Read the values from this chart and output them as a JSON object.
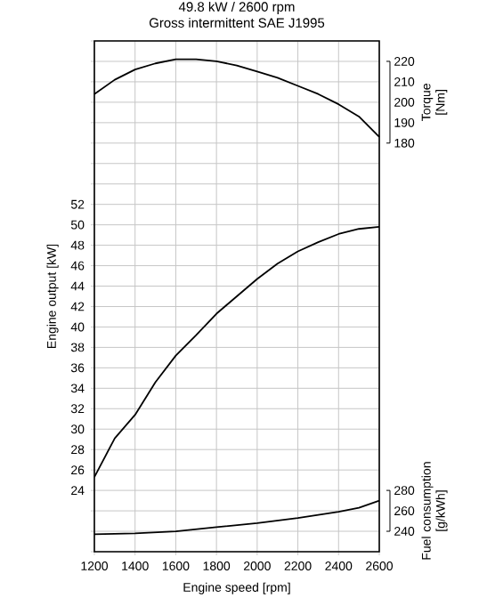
{
  "chart_data": {
    "type": "line",
    "title": "49.8 kW / 2600 rpm",
    "subtitle": "Gross intermittent SAE J1995",
    "xlabel": "Engine speed [rpm]",
    "ylabel": "Engine output [kW]",
    "y2label": "Torque [Nm]",
    "y3label": "Fuel consumption [g/kWh]",
    "x": [
      1200,
      1300,
      1400,
      1500,
      1600,
      1700,
      1800,
      1900,
      2000,
      2100,
      2200,
      2300,
      2400,
      2500,
      2600
    ],
    "series": [
      {
        "color": "#000000",
        "axis": "y2",
        "values": [
          204,
          211,
          216,
          219,
          221,
          221,
          220,
          218,
          215,
          212,
          208,
          204,
          199,
          193,
          183
        ]
      },
      {
        "color": "#000000",
        "values": [
          25.3,
          29.1,
          31.4,
          34.6,
          37.2,
          39.2,
          41.3,
          43,
          44.7,
          46.2,
          47.4,
          48.3,
          49.1,
          49.6,
          49.8
        ]
      },
      {
        "color": "#000000",
        "axis": "y3",
        "x": [
          1200,
          1400,
          1600,
          1800,
          2000,
          2200,
          2400,
          2500,
          2600
        ],
        "values": [
          237,
          238,
          240,
          244,
          248,
          253,
          259,
          263,
          270
        ]
      }
    ],
    "xlim": [
      1200,
      2600
    ],
    "xticks": [
      1200,
      1400,
      1600,
      1800,
      2000,
      2200,
      2400,
      2600
    ],
    "ylim": [
      18,
      68
    ],
    "yticks": [
      {
        "value": 18,
        "label": null
      },
      {
        "value": 20,
        "label": null
      },
      {
        "value": 22,
        "label": null
      },
      24,
      26,
      28,
      30,
      32,
      34,
      36,
      38,
      40,
      42,
      44,
      46,
      48,
      50,
      52,
      {
        "value": 54,
        "label": null
      },
      {
        "value": 56,
        "label": null
      },
      {
        "value": 58,
        "label": null
      },
      {
        "value": 60,
        "label": null
      },
      {
        "value": 62,
        "label": null
      },
      {
        "value": 64,
        "label": null
      },
      {
        "value": 66,
        "label": null
      },
      {
        "value": 68,
        "label": null
      }
    ],
    "y2lim": [
      -20,
      230
    ],
    "y2ticks": [
      180,
      190,
      200,
      210,
      220
    ],
    "y3lim": [
      220,
      720
    ],
    "y3ticks": [
      240,
      260,
      280
    ],
    "grid": true,
    "marker": "none",
    "line_style": "solid"
  }
}
